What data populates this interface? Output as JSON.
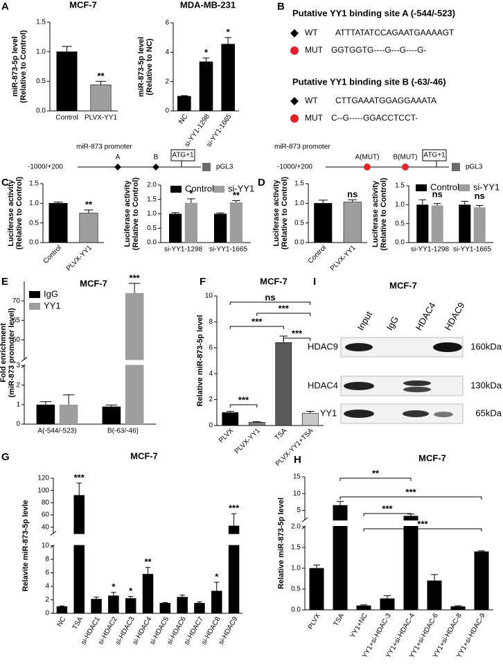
{
  "panel_letters": [
    "A",
    "B",
    "C",
    "D",
    "E",
    "F",
    "I",
    "G",
    "H"
  ],
  "binding": {
    "sites": [
      {
        "title": "Putative YY1 binding site A (-544/-523)",
        "rows": [
          {
            "label": "WT",
            "sequence": "ATTTATATCCAGAATGAAAAGT"
          },
          {
            "label": "MUT",
            "sequence": "GGTGGTG----G---G----G-"
          }
        ]
      },
      {
        "title": "Putative YY1 binding site B (-63/-46)",
        "rows": [
          {
            "label": "WT",
            "sequence": "CTTGAAATGGAGGAAATA"
          },
          {
            "label": "MUT",
            "sequence": "C--G-----GGACCTCCT-"
          }
        ]
      }
    ]
  },
  "promoters": [
    {
      "title": "miR-873 promoter",
      "range": "-1000/+200",
      "sites": [
        "A",
        "B"
      ],
      "start": "ATG+1",
      "vector": "pGL3"
    },
    {
      "title": "miR-873 promoter",
      "range": "-1000/+200",
      "sites": [
        "A(MUT)",
        "B(MUT)"
      ],
      "start": "ATG+1",
      "vector": "pGL3"
    }
  ],
  "blot": {
    "title": "MCF-7",
    "lanes": [
      "Input",
      "IgG",
      "HDAC4",
      "HDAC9"
    ],
    "rows": [
      {
        "protein": "HDAC9",
        "size": "160kDa"
      },
      {
        "protein": "HDAC4",
        "size": "130kDa"
      },
      {
        "protein": "YY1",
        "size": "65kDa"
      }
    ]
  },
  "chart_data": [
    {
      "type": "bar",
      "title": "MCF-7",
      "ylabel": [
        "miR-873-5p level",
        "(Relative to Control)"
      ],
      "categories": [
        "Control",
        "PLVX-YY1"
      ],
      "values": [
        1.0,
        0.44
      ],
      "errors": [
        0.09,
        0.06
      ],
      "colors": [
        "#000000",
        "#9e9e9e"
      ],
      "sig_labels": [
        null,
        "**"
      ],
      "ylim": [
        0,
        1.5
      ],
      "yticks": [
        {
          "value": 0,
          "label": "0.0"
        },
        {
          "value": 0.5,
          "label": "0.5"
        },
        {
          "value": 1,
          "label": "1.0"
        },
        {
          "value": 1.5,
          "label": "1.5"
        }
      ]
    },
    {
      "type": "bar",
      "title": "MDA-MB-231",
      "ylabel": [
        "miR-873-5p level",
        "(Relative to NC)"
      ],
      "categories": [
        "NC",
        "si-YY1-1298",
        "si-YY1-1665"
      ],
      "values": [
        1.0,
        3.35,
        4.55
      ],
      "errors": [
        0.04,
        0.25,
        0.45
      ],
      "colors": [
        "#000000",
        "#000000",
        "#000000"
      ],
      "sig_labels": [
        null,
        "*",
        "*"
      ],
      "ylim": [
        0,
        6
      ],
      "yticks": [
        0,
        2,
        4,
        6
      ]
    },
    {
      "type": "bar",
      "ylabel": [
        "Luciferase activity",
        "(Relative to Control)"
      ],
      "categories": [
        "Control",
        "PLVX-YY1"
      ],
      "values": [
        1.0,
        0.75
      ],
      "errors": [
        0.03,
        0.08
      ],
      "colors": [
        "#000000",
        "#9e9e9e"
      ],
      "sig_labels": [
        null,
        "**"
      ],
      "ylim": [
        0,
        1.5
      ],
      "yticks": [
        {
          "value": 0,
          "label": "0.0"
        },
        {
          "value": 0.5,
          "label": "0.5"
        },
        {
          "value": 1,
          "label": "1.0"
        },
        {
          "value": 1.5,
          "label": "1.5"
        }
      ]
    },
    {
      "type": "bar",
      "ylabel": [
        "Luciferase activity",
        "(Relative to Control)"
      ],
      "categories": [
        "si-YY1-1298",
        "si-YY1-1665"
      ],
      "series": [
        {
          "name": "Control",
          "color": "#000000",
          "values": [
            1.0,
            1.0
          ],
          "errors": [
            0.04,
            0.03
          ]
        },
        {
          "name": "si-YY1",
          "color": "#9e9e9e",
          "values": [
            1.38,
            1.4
          ],
          "errors": [
            0.14,
            0.06
          ]
        }
      ],
      "sig_labels": [
        "*",
        "**"
      ],
      "ylim": [
        0,
        2
      ],
      "yticks": [
        {
          "value": 0,
          "label": "0.0"
        },
        {
          "value": 0.5,
          "label": "0.5"
        },
        {
          "value": 1,
          "label": "1.0"
        },
        {
          "value": 1.5,
          "label": "1.5"
        },
        {
          "value": 2,
          "label": "2.0"
        }
      ]
    },
    {
      "type": "bar",
      "ylabel": [
        "Luciferase activity",
        "(Relative to Control)"
      ],
      "categories": [
        "Control",
        "PLVX-YY1"
      ],
      "values": [
        1.0,
        1.03
      ],
      "errors": [
        0.08,
        0.06
      ],
      "colors": [
        "#000000",
        "#9e9e9e"
      ],
      "sig_labels": [
        null,
        "ns"
      ],
      "ylim": [
        0,
        1.5
      ],
      "yticks": [
        {
          "value": 0,
          "label": "0.0"
        },
        {
          "value": 0.5,
          "label": "0.5"
        },
        {
          "value": 1,
          "label": "1.0"
        },
        {
          "value": 1.5,
          "label": "1.5"
        }
      ]
    },
    {
      "type": "bar",
      "ylabel": [
        "Luciferase activity",
        "(Relative to Control)"
      ],
      "categories": [
        "si-YY1-1298",
        "si-YY1-1665"
      ],
      "series": [
        {
          "name": "Control",
          "color": "#000000",
          "values": [
            1.0,
            1.0
          ],
          "errors": [
            0.13,
            0.09
          ]
        },
        {
          "name": "si-YY1",
          "color": "#9e9e9e",
          "values": [
            0.98,
            0.93
          ],
          "errors": [
            0.05,
            0.05
          ]
        }
      ],
      "sig_labels": [
        "ns",
        "ns"
      ],
      "ylim": [
        0,
        1.5
      ],
      "yticks": [
        {
          "value": 0,
          "label": "0.0"
        },
        {
          "value": 0.5,
          "label": "0.5"
        },
        {
          "value": 1,
          "label": "1.0"
        },
        {
          "value": 1.5,
          "label": "1.5"
        }
      ]
    },
    {
      "type": "bar",
      "title": "MCF-7",
      "ylabel": [
        "Fold enrichment",
        "(miR-873 promoter  level)"
      ],
      "categories": [
        "A(-544/-523)",
        "B(-63/-46)"
      ],
      "series": [
        {
          "name": "IgG",
          "color": "#000000",
          "values": [
            1.0,
            0.9
          ],
          "errors": [
            0.15,
            0.08
          ]
        },
        {
          "name": "YY1",
          "color": "#9e9e9e",
          "values": [
            1.0,
            72
          ],
          "errors": [
            0.5,
            2.5
          ]
        }
      ],
      "sig_labels": [
        null,
        "***"
      ],
      "ylim": [
        0,
        75
      ],
      "ybreak": [
        3,
        55
      ],
      "yticks": [
        0,
        1,
        2,
        3,
        60,
        65,
        70
      ]
    },
    {
      "type": "bar",
      "title": "MCF-7",
      "ylabel": "Relative miR-873-5p level",
      "categories": [
        "PLVX",
        "PLVX-YY1",
        "TSA",
        "PLVX-YY1+TSA"
      ],
      "values": [
        1.0,
        0.25,
        6.4,
        0.95
      ],
      "errors": [
        0.1,
        0.05,
        0.5,
        0.15
      ],
      "colors": [
        "#000000",
        "#7f7f7f",
        "#595959",
        "#c8c8c8"
      ],
      "comparisons": [
        {
          "from": 0,
          "to": 3,
          "label": "ns"
        },
        {
          "from": 1,
          "to": 3,
          "label": "***"
        },
        {
          "from": 0,
          "to": 2,
          "label": "***"
        },
        {
          "from": 2,
          "to": 3,
          "label": "***"
        },
        {
          "from": 0,
          "to": 1,
          "label": "***"
        }
      ],
      "ylim": [
        0,
        10
      ],
      "yticks": [
        0,
        2,
        4,
        6,
        8,
        10
      ]
    },
    {
      "type": "bar",
      "title": "MCF-7",
      "ylabel": "Relavite miR-873-5p levle",
      "categories": [
        "NC",
        "TSA",
        "si-HDAC1",
        "si-HDAC2",
        "si-HDAC3",
        "si-HDAC4",
        "si-HDAC5",
        "si-HDAC6",
        "si-HDAC7",
        "si-HDAC8",
        "si-HDAC9"
      ],
      "values": [
        1.0,
        92,
        2.1,
        2.6,
        2.2,
        5.8,
        1.5,
        2.4,
        1.5,
        3.3,
        42
      ],
      "errors": [
        0.1,
        20,
        0.3,
        0.5,
        0.3,
        1.0,
        0.1,
        0.3,
        0.2,
        1.3,
        20
      ],
      "colors": [
        "#000000",
        "#000000",
        "#000000",
        "#000000",
        "#000000",
        "#000000",
        "#000000",
        "#000000",
        "#000000",
        "#000000",
        "#000000"
      ],
      "sig_labels": [
        null,
        "***",
        null,
        "*",
        "*",
        "**",
        null,
        null,
        null,
        "*",
        "***"
      ],
      "ylim": [
        0,
        120
      ],
      "ybreak": [
        10,
        30
      ],
      "yticks": [
        0,
        2,
        4,
        6,
        8,
        10,
        40,
        60,
        80,
        100,
        120
      ]
    },
    {
      "type": "bar",
      "title": "MCF-7",
      "ylabel": "Relative miR-873-5p level",
      "categories": [
        "PLVX",
        "TSA",
        "YY1+NC",
        "YY1+si-HDAC-3",
        "YY1+si-HDAC-4",
        "YY1+si-HDAC-6",
        "YY1+si-HDAC-8",
        "YY1+si-HDAC-9"
      ],
      "values": [
        1.0,
        6.5,
        0.1,
        0.27,
        3.3,
        0.7,
        0.08,
        1.4
      ],
      "errors": [
        0.08,
        1.2,
        0.02,
        0.07,
        0.6,
        0.15,
        0.02,
        0.02
      ],
      "colors": [
        "#000000",
        "#000000",
        "#000000",
        "#000000",
        "#000000",
        "#000000",
        "#000000",
        "#000000"
      ],
      "comparisons": [
        {
          "from": 1,
          "to": 4,
          "label": "**"
        },
        {
          "from": 1,
          "to": 7,
          "label": "***"
        },
        {
          "from": 2,
          "to": 4,
          "label": "***"
        },
        {
          "from": 2,
          "to": 7,
          "label": "***"
        }
      ],
      "ylim": [
        0,
        15
      ],
      "ybreak": [
        2,
        2.2
      ],
      "yticks": [
        {
          "value": 0,
          "label": "0.0"
        },
        {
          "value": 0.5,
          "label": "0.5"
        },
        {
          "value": 1,
          "label": "1.0"
        },
        {
          "value": 1.5,
          "label": "1.5"
        },
        {
          "value": 2,
          "label": "2.0"
        },
        5,
        10,
        15
      ]
    }
  ]
}
